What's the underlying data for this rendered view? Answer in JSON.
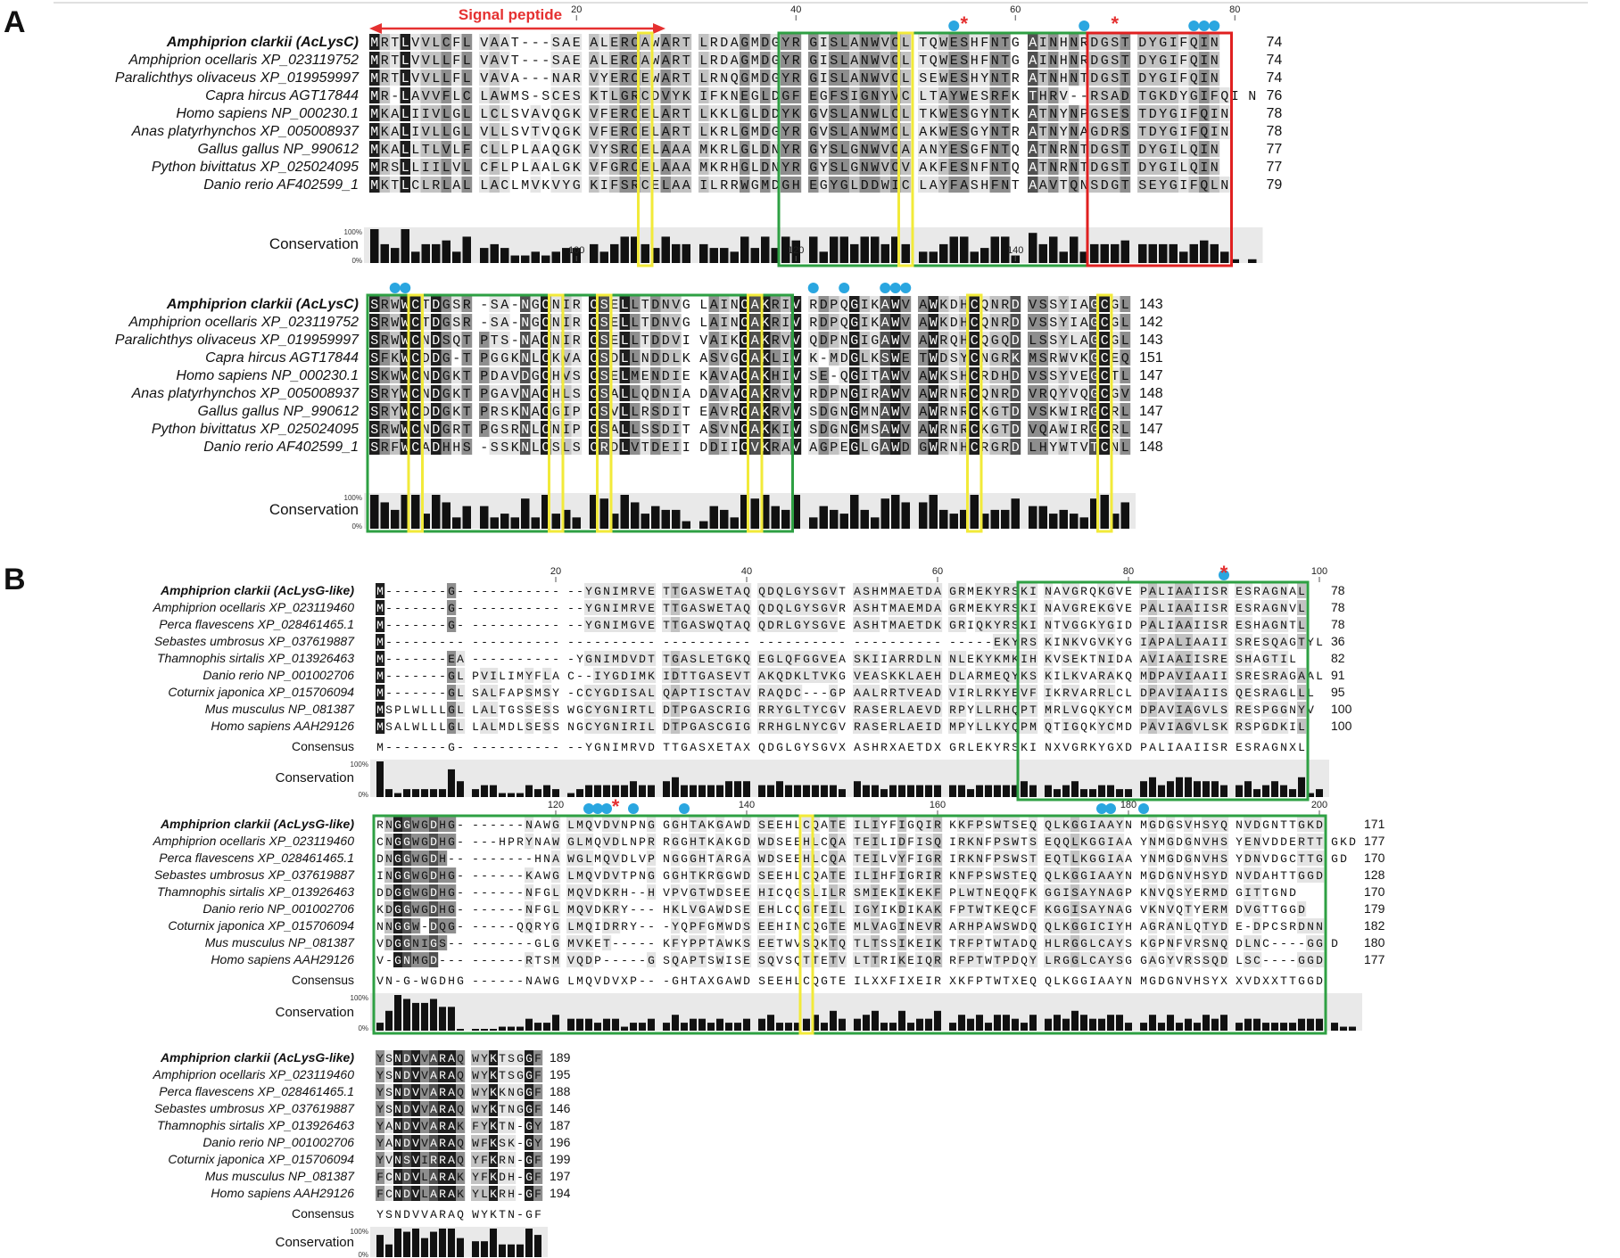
{
  "panels": [
    {
      "label": "A",
      "annotation": "Signal peptide",
      "blocks": [
        {
          "ruler": [
            {
              "pos": 20,
              "text": "20"
            },
            {
              "pos": 40,
              "text": "40"
            },
            {
              "pos": 60,
              "text": "60"
            },
            {
              "pos": 80,
              "text": "80"
            }
          ],
          "ends": [
            "74",
            "74",
            "74",
            "76",
            "78",
            "78",
            "77",
            "77",
            "79"
          ],
          "seqs": [
            "MRTLVVLCFLVAAT---SAEALERCAWARTLRDAGMDGYRGISLANWVCLTQWESHFNTGAINHNRDGSTDYGIFQIN",
            "MRTLVVLLFLVAVT---SAEALERCAWARTLRDAGMDGYRGISLANWVCLTQWESHFNTGAINHNRDGSTDYGIFQIN",
            "MRTLVVLLFLVAVA---NARVYERCEWARTLRNQGMDGYRGISLANWVCLSEWESHYNTRATNHNTDGSTDYGIFQIN",
            "MR-LAVVFLCLAWMS-SCESKTLGRCDVYKIFKNEGLDGFEGFSIGNYVCLTAYWESRFKTHRV--RSADTGKDYGIFQIN",
            "MKALIIVLGLLCLSVAVQGKVFERCELARTLKKLGLDDYKGVSLANWLCLTKWESGYNTKATNYNPGSESTDYGIFQIN",
            "MKALIVLLGLVLLSVTVQGKVFERCELARTLKRLGMDGYRGVSLANWMCLAKWESGYNTRATNYNAGDRSTDYGIFQIN",
            "MKALLTLVLFCLLPLAAQGKVYSRCELAAAMKRLGLDNYRGYSLGNWVCAANYESGFNTQATNRNTDGSTDYGILQIN",
            "MRSLLIILVLCFLPLAALGKVFGRCELAAAMKRHGLDNYRGYSLGNWVCVAKFESNFNTQATNRNTDGSTDYGILQIN",
            "MKTLCLRLALLACLMVKVYGKIFSRCELAAILRRWGMDGHEGYGLDDWICLAYFASHFNTAAVTQNSDGTSEYGIFQLN"
          ]
        },
        {
          "ruler": [
            {
              "pos": 100,
              "text": "100"
            },
            {
              "pos": 120,
              "text": "120"
            },
            {
              "pos": 140,
              "text": "140"
            }
          ],
          "ends": [
            "143",
            "142",
            "143",
            "151",
            "147",
            "148",
            "147",
            "147",
            "148"
          ],
          "seqs": [
            "SRWWCTDGSR-SA-NGCNIRCSELLTDNVGLAINCAKRIVRDPQGIKAWVAWKDHCQNRDVSSYIAGCGL",
            "SRWWCTDGSR-SA-NGCNIRCSELLTDNVGLAINCAKRIVRDPQGIKAWVAWKDHCQNRDVSSYIAGCGL",
            "SRWWCNDSQTPTS-NACNIRCSELLTDDVIVAIKCAKRVVQDPNGIGAWVAWRQHCQGQDLSSYLAGCGL",
            "SFKWCDDG-TPGGKNLCKVACSDLLNDDLKASVGCAKLIVK-MDGLKSWETWDSYCNGRKMSRWVKGCEQ",
            "SKWWCNDGKTPDAVDGCHVSCSELMENDIEKAVACAKHIVSE-QGITAWVAWKSHCRDHDVSSYVEGCTL",
            "SRYWCNDGKTPGAVNACHLSCSALLQDNIADAVACAKRVVRDPNGIRAWVAWRNRCQNRDVRQYVQGCGV",
            "SRYWCDDGKTPRSKNACGIPCSVLLRSDITEAVRCAKRVVSDGNGMNAWVAWRNRCKGTDVSKWIRGCRL",
            "SRWWCNDGRTPGSRNLCNIPCSALLSSDITASVNCAKKIVSDGNGMSAWVAWRNRCKGTDVQAWIRGCRL",
            "SRFWCADHHS-SSKNLCSLSCRDLVTDEIIDDIICVKRAVAGPEGLGAWDGWRNHCRGRDLHYWTVTCNL"
          ]
        }
      ],
      "species": [
        "Amphiprion clarkii (AcLysC)",
        "Amphiprion ocellaris XP_023119752",
        "Paralichthys olivaceus XP_019959997",
        "Capra hircus AGT17844",
        "Homo sapiens NP_000230.1",
        "Anas platyrhynchos XP_005008937",
        "Gallus gallus NP_990612",
        "Python bivittatus XP_025024095",
        "Danio rerio AF402599_1"
      ],
      "conservation_label": "Conservation",
      "scale_top": "100%",
      "scale_bottom": "0%"
    },
    {
      "label": "B",
      "blocks": [
        {
          "ruler": [
            {
              "pos": 20,
              "text": "20"
            },
            {
              "pos": 40,
              "text": "40"
            },
            {
              "pos": 60,
              "text": "60"
            },
            {
              "pos": 80,
              "text": "80"
            },
            {
              "pos": 100,
              "text": "100"
            }
          ],
          "ends": [
            "78",
            "78",
            "78",
            "36",
            "82",
            "91",
            "95",
            "100",
            "100"
          ],
          "seqs": [
            "M-------G-------------YGNIMRVETTGASWETAQQDQLGYSGVTASHMMAETDAGRMEKYRSKINAVGRQKGVEPALIAAIISRESRAGNAL",
            "M-------G-------------YGNIMRVETTGASWETAQQDQLGYSGVRASHTMAEMDAGRMEKYRSKINAVGREKGVEPALIAAIISRESRAGNVL",
            "M-------G-------------YGNIMGVETTGASWQTAQQDRLGYSGVEASHTMAETDKGRIQKYRSKINTVGGKYGIDPALIAAIISRESHAGNTL",
            "M----------------------------------------------------------------EKYRSKINKVGVKYGIAPALIAAIISRESQAGTYL",
            "M-------EA-----------YGNIMDVDTTGASLETGKQEGLQFGGVEASKIIARRDLNNLEKYKMKIHKVSEKTNIDAAVIAAIISRESHAGTIL",
            "M-------GLPVILIMYFLAC--IYGDIMKIDTTGASEVTAKQDKLTVKGVEASKKLAEHDLARMEQYKSKILKVARAKQMDPAVIAAIISRESRAGAAL",
            "M-------GLSALFAPSMSY-CCYGDISALQAPTISCTAVRAQDC---GPAALRRTVEADVIRLRKYEVFIKRVARRLCLDPAVIAAIISQESRAGLLL",
            "MSPLWLLLGLLALTGSSESSWGCYGNIRTLDTPGASCRIGRRYGLTYCGVRASERLAEVDRPYLLRHQPTMRLVGQKYCMDPAVIAGVLSRESPGGNYV",
            "MSALWLLLGLLALMDLSESSNGCYGNIRILDTPGASCGIGRRHGLNYCGVRASERLAEIDMPYLLKYQPMQTIGQKYCMDPAVIAGVLSKRSPGDKIL"
          ],
          "consensus": "M-------G-------------YGNIMRVDTTGASXETAXQDGLGYSGVXASHRXAETDXGRLEKYRSKINXVGRKYGXDPALIAAIISRESRAGNXL"
        },
        {
          "ruler": [
            {
              "pos": 120,
              "text": "120"
            },
            {
              "pos": 140,
              "text": "140"
            },
            {
              "pos": 160,
              "text": "160"
            },
            {
              "pos": 180,
              "text": "180"
            },
            {
              "pos": 200,
              "text": "200"
            }
          ],
          "ends": [
            "171",
            "177",
            "170",
            "128",
            "170",
            "179",
            "182",
            "180",
            "177"
          ],
          "seqs": [
            "RNGGWGDHG-------NAWGLMQVDVNPNGGGHTAKGAWDSEEHLCQATEILIYFIGQIRKKFPSWTSEQQLKGGIAAYNMGDGSVHSYQNVDGNTTGKD",
            "CNGGWGDHG----HPRYNAWGLMQVDLNPRRGGHTKAKGDWDSEEHLCQATEILIDFISQIRKNFPSWTSEQQLKGGIAAYNMGDGNVHSYENVDDERTTGKD",
            "DNGGWGDH---------HNAWGLMQVDLVPNGGGHTARGAWDSEEHLCQATEILVYFIGRIRKNFPSWSTEQTLKGGIAAYNMGDGNVHSYDNVDGCTTGGD",
            "INGGWGDHG-------KAWGLMQVDVTPNGGGHTKRGGWDSEEHLCQATEILIHFIGRIRKNFPSWSTEQQLKGGIAAYNMGDGNVHSYDNVDAHTTGGD",
            "DDGGWGDHG-------NFGLMQVDKRH--HVPVGTWDSEEHICQGSLILRSMIEKIKEKFPLWTNEQQFKGGISAYNAGPKNVQSYERMDGITTGND",
            "KDGGWGDHG-------NFGLMQVDKRY---HKLVGAWDSEEHLCQGTEILIGYIKDIKAKFPTWTKEQCFKGGISAYNAGVKNVQTYERMDVGTTGGD",
            "NNGGW-DQG------QQRYGLMQIDRRY---YQPFGMWDSEEHINCQGTEMLVAGINEVRARHPAWSWDQQLKGGICIYHAGRANLQTYDE-DPCSRDNN",
            "VDGGNIGS---------GLGMVKET-----KFYPPTAWKSEETWVSQKTQTLTSSIKEIKTRFPTWTADQHLRGGLCAYSKGPNFVRSNQDLNC----GGD",
            "V-GNMGD---------RTSMVQDP-----GSQAPTSWISESQVSQTTETVLTTRIKEIQRRFPTWTPDQYLRGGLCAYSGGAGYVRSSQDLSC----GGD"
          ],
          "consensus": "VN-G-WGDHG------NAWGLMQVDVXP---GHTAXGAWDSEEHLCQGTEILXXFIXEIRXKFPTWTXEQQLKGGIAAYNMGDGNVHSYXXVDXXTTGGD"
        },
        {
          "ruler": [],
          "ends": [
            "189",
            "195",
            "188",
            "146",
            "187",
            "196",
            "199",
            "197",
            "194"
          ],
          "seqs": [
            "YSNDVVARAQWYKTSGGF",
            "YSNDVVARAQWYKTSGGF",
            "YSNDVVARAQWYKKNGGF",
            "YSNDVVARAQWYKTNGGF",
            "YANDVVARAKFYKTN-GY",
            "YANDVVARAQWFKSK-GY",
            "YVNSVIRRAQYFKRN-GF",
            "FCNDVLARAKYFKDH-GF",
            "FCNDVLARAKYLKRH-GF"
          ],
          "consensus": "YSNDVVARAQWYKTN-GF"
        }
      ],
      "species": [
        "Amphiprion clarkii (AcLysG-like)",
        "Amphiprion ocellaris XP_023119460",
        "Perca flavescens XP_028461465.1",
        "Sebastes umbrosus XP_037619887",
        "Thamnophis sirtalis XP_013926463",
        "Danio rerio NP_001002706",
        "Coturnix japonica XP_015706094",
        "Mus musculus NP_081387",
        "Homo sapiens AAH29126"
      ],
      "consensus_label": "Consensus",
      "conservation_label": "Conservation",
      "scale_top": "100%",
      "scale_bottom": "0%"
    }
  ],
  "colors": {
    "grey_scale": [
      "#ffffff",
      "#e4e4e4",
      "#c2c2c2",
      "#8e8e8e",
      "#505050",
      "#1e1e1e"
    ],
    "green_box": "#2ea043",
    "yellow_box": "#f2ea3a",
    "red_box": "#e02020",
    "signal_arrow": "#e53030",
    "dot": "#2aa6e0",
    "star": "#e53030"
  }
}
